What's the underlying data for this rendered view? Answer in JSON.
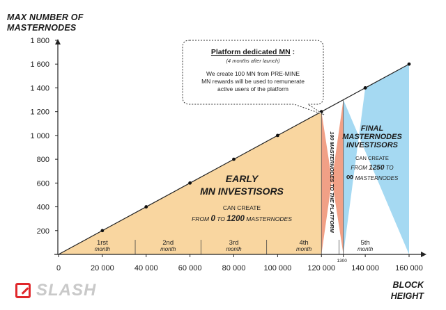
{
  "chart_data": {
    "type": "area",
    "y_axis_title": [
      "MAX NUMBER OF",
      "MASTERNODES"
    ],
    "x_axis_title": [
      "BLOCK",
      "HEIGHT"
    ],
    "xlim": [
      0,
      160000
    ],
    "ylim": [
      0,
      1800
    ],
    "x_ticks": [
      {
        "value": 0,
        "label": "0"
      },
      {
        "value": 20000,
        "label": "20 000"
      },
      {
        "value": 40000,
        "label": "40 000"
      },
      {
        "value": 60000,
        "label": "60 000"
      },
      {
        "value": 80000,
        "label": "80 000"
      },
      {
        "value": 100000,
        "label": "100 000"
      },
      {
        "value": 120000,
        "label": "120 000"
      },
      {
        "value": 140000,
        "label": "140 000"
      },
      {
        "value": 160000,
        "label": "160 000"
      }
    ],
    "y_ticks": [
      {
        "value": 200,
        "label": "200"
      },
      {
        "value": 400,
        "label": "400"
      },
      {
        "value": 600,
        "label": "600"
      },
      {
        "value": 800,
        "label": "800"
      },
      {
        "value": 1000,
        "label": "1 000"
      },
      {
        "value": 1200,
        "label": "1 200"
      },
      {
        "value": 1400,
        "label": "1 400"
      },
      {
        "value": 1600,
        "label": "1 600"
      },
      {
        "value": 1800,
        "label": "1 800"
      }
    ],
    "series": [
      {
        "x": [
          0,
          20000,
          40000,
          60000,
          80000,
          100000,
          120000,
          140000,
          160000
        ],
        "y": [
          0,
          200,
          400,
          600,
          800,
          1000,
          1200,
          1400,
          1600
        ],
        "markers_at": [
          20000,
          40000,
          60000,
          80000,
          100000,
          120000,
          140000,
          160000
        ]
      }
    ],
    "regions": [
      {
        "x_start": 0,
        "x_end": 120000,
        "color": "#f9d6a0",
        "title": [
          "EARLY",
          "MN INVESTISORS"
        ],
        "sub1": "CAN CREATE",
        "sub2_parts": [
          "FROM ",
          "0",
          " TO ",
          "1200",
          " MASTERNODES"
        ]
      },
      {
        "x_start": 120000,
        "x_end": 130000,
        "color": "#f1a086",
        "text": "100 MASTERNODES TO THE PLATFORM"
      },
      {
        "x_start": 130000,
        "x_end": 160000,
        "color": "#a5d9f2",
        "title": [
          "FINAL",
          "MASTERNODES",
          "INVESTISORS"
        ],
        "sub1": "CAN CREATE",
        "sub2_parts": [
          "FROM ",
          "1250",
          " TO"
        ],
        "sub3_parts": [
          "∞",
          " MASTERNODES"
        ]
      }
    ],
    "months": [
      {
        "num": "1rst",
        "word": "month",
        "x": 20000
      },
      {
        "num": "2nd",
        "word": "month",
        "x": 50000
      },
      {
        "num": "3rd",
        "word": "month",
        "x": 80000
      },
      {
        "num": "4th",
        "word": "month",
        "x": 112000
      },
      {
        "num": "5th",
        "word": "month",
        "x": 140000
      }
    ],
    "month_dividers": [
      35000,
      65000,
      95000,
      128000
    ],
    "marker_1300": {
      "x": 130000,
      "label": "1300"
    },
    "callout": {
      "title": "Platform dedicated MN",
      "colon": ":",
      "subtitle": "(4 months after launch)",
      "lines": [
        "We create 100 MN from PRE-MINE",
        "MN rewards will be used to remunerate",
        "active users of the platform"
      ]
    }
  },
  "logo": {
    "text": "SLASH",
    "icon": "slash-logo-icon"
  },
  "colors": {
    "early": "#f9d6a0",
    "platform": "#f1a086",
    "final": "#a5d9f2",
    "line": "#222222",
    "logo_red": "#e0272b"
  }
}
